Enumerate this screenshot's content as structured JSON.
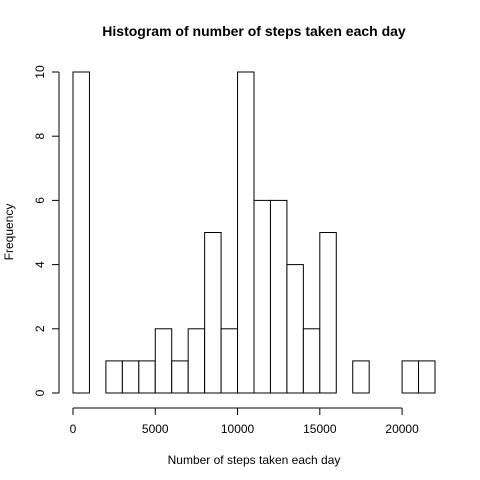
{
  "chart_data": {
    "type": "bar",
    "title": "Histogram of number of steps taken each day",
    "xlabel": "Number of steps taken each day",
    "ylabel": "Frequency",
    "bin_width": 1000,
    "bins": [
      {
        "x0": 0,
        "x1": 1000,
        "count": 10
      },
      {
        "x0": 1000,
        "x1": 2000,
        "count": 0
      },
      {
        "x0": 2000,
        "x1": 3000,
        "count": 1
      },
      {
        "x0": 3000,
        "x1": 4000,
        "count": 1
      },
      {
        "x0": 4000,
        "x1": 5000,
        "count": 1
      },
      {
        "x0": 5000,
        "x1": 6000,
        "count": 2
      },
      {
        "x0": 6000,
        "x1": 7000,
        "count": 1
      },
      {
        "x0": 7000,
        "x1": 8000,
        "count": 2
      },
      {
        "x0": 8000,
        "x1": 9000,
        "count": 5
      },
      {
        "x0": 9000,
        "x1": 10000,
        "count": 2
      },
      {
        "x0": 10000,
        "x1": 11000,
        "count": 10
      },
      {
        "x0": 11000,
        "x1": 12000,
        "count": 6
      },
      {
        "x0": 12000,
        "x1": 13000,
        "count": 6
      },
      {
        "x0": 13000,
        "x1": 14000,
        "count": 4
      },
      {
        "x0": 14000,
        "x1": 15000,
        "count": 2
      },
      {
        "x0": 15000,
        "x1": 16000,
        "count": 5
      },
      {
        "x0": 16000,
        "x1": 17000,
        "count": 0
      },
      {
        "x0": 17000,
        "x1": 18000,
        "count": 1
      },
      {
        "x0": 18000,
        "x1": 19000,
        "count": 0
      },
      {
        "x0": 19000,
        "x1": 20000,
        "count": 0
      },
      {
        "x0": 20000,
        "x1": 21000,
        "count": 1
      },
      {
        "x0": 21000,
        "x1": 22000,
        "count": 1
      }
    ],
    "xlim": [
      0,
      22000
    ],
    "ylim": [
      0,
      10
    ],
    "x_ticks": [
      0,
      5000,
      10000,
      15000,
      20000
    ],
    "x_tick_labels": [
      "0",
      "5000",
      "10000",
      "15000",
      "20000"
    ],
    "y_ticks": [
      0,
      2,
      4,
      6,
      8,
      10
    ],
    "y_tick_labels": [
      "0",
      "2",
      "4",
      "6",
      "8",
      "10"
    ],
    "grid": false,
    "legend": "none",
    "colors": {
      "bar_fill": "#ffffff",
      "bar_stroke": "#000000",
      "axis": "#000000",
      "text": "#000000"
    }
  }
}
